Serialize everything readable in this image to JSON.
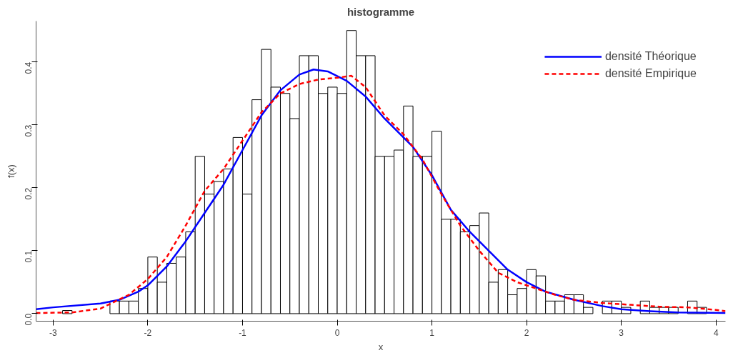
{
  "chart_data": {
    "type": "histogram",
    "title": "histogramme",
    "xlabel": "x",
    "ylabel": "f(x)",
    "bins": [
      -2.9,
      -2.8,
      -2.7,
      -2.6,
      -2.5,
      -2.4,
      -2.3,
      -2.2,
      -2.1,
      -2.0,
      -1.9,
      -1.8,
      -1.7,
      -1.6,
      -1.5,
      -1.4,
      -1.3,
      -1.2,
      -1.1,
      -1.0,
      -0.9,
      -0.8,
      -0.7,
      -0.6,
      -0.5,
      -0.4,
      -0.3,
      -0.2,
      -0.1,
      0.0,
      0.1,
      0.2,
      0.3,
      0.4,
      0.5,
      0.6,
      0.7,
      0.8,
      0.9,
      1.0,
      1.1,
      1.2,
      1.3,
      1.4,
      1.5,
      1.6,
      1.7,
      1.8,
      1.9,
      2.0,
      2.1,
      2.2,
      2.3,
      2.4,
      2.5,
      2.6,
      2.7,
      2.8,
      2.9,
      3.0,
      3.1,
      3.2,
      3.3,
      3.4,
      3.5,
      3.6,
      3.7,
      3.8,
      3.9
    ],
    "values": [
      0.005,
      0,
      0,
      0,
      0,
      0.02,
      0.02,
      0.02,
      0.04,
      0.09,
      0.05,
      0.08,
      0.09,
      0.13,
      0.25,
      0.19,
      0.21,
      0.23,
      0.28,
      0.19,
      0.34,
      0.42,
      0.36,
      0.35,
      0.31,
      0.41,
      0.41,
      0.35,
      0.36,
      0.35,
      0.45,
      0.41,
      0.41,
      0.25,
      0.25,
      0.26,
      0.33,
      0.25,
      0.25,
      0.29,
      0.15,
      0.15,
      0.13,
      0.14,
      0.16,
      0.05,
      0.07,
      0.03,
      0.04,
      0.07,
      0.06,
      0.02,
      0.02,
      0.03,
      0.03,
      0.01,
      0,
      0.02,
      0.02,
      0.01,
      0,
      0.02,
      0.01,
      0.01,
      0.01,
      0,
      0.02,
      0.01
    ],
    "color": "#ffffff",
    "series": [
      {
        "name": "densité Théorique",
        "type": "line",
        "color": "#0000ff",
        "line_style": "solid",
        "x": [
          -3.18,
          -3.0,
          -2.5,
          -2.3,
          -2.1,
          -2.0,
          -1.8,
          -1.6,
          -1.4,
          -1.2,
          -1.0,
          -0.8,
          -0.6,
          -0.4,
          -0.25,
          -0.1,
          0.1,
          0.3,
          0.5,
          0.7,
          0.8,
          1.0,
          1.2,
          1.4,
          1.6,
          1.8,
          2.0,
          2.2,
          2.5,
          2.8,
          3.0,
          3.3,
          3.6,
          4.1
        ],
        "values": [
          0.007,
          0.01,
          0.016,
          0.022,
          0.035,
          0.045,
          0.075,
          0.115,
          0.16,
          0.205,
          0.26,
          0.315,
          0.355,
          0.38,
          0.388,
          0.385,
          0.37,
          0.345,
          0.31,
          0.28,
          0.265,
          0.22,
          0.165,
          0.13,
          0.1,
          0.07,
          0.05,
          0.035,
          0.022,
          0.012,
          0.007,
          0.004,
          0.002,
          0.001
        ]
      },
      {
        "name": "densité Empirique",
        "type": "line",
        "color": "#ff0000",
        "line_style": "dashed",
        "x": [
          -3.18,
          -2.8,
          -2.5,
          -2.2,
          -2.0,
          -1.8,
          -1.6,
          -1.4,
          -1.2,
          -1.0,
          -0.8,
          -0.6,
          -0.4,
          -0.2,
          0.0,
          0.15,
          0.3,
          0.5,
          0.7,
          0.9,
          1.1,
          1.3,
          1.5,
          1.7,
          1.9,
          2.1,
          2.3,
          2.5,
          2.8,
          3.1,
          3.4,
          3.7,
          4.0,
          4.1
        ],
        "values": [
          0.001,
          0.002,
          0.008,
          0.03,
          0.055,
          0.09,
          0.14,
          0.195,
          0.23,
          0.275,
          0.32,
          0.35,
          0.365,
          0.372,
          0.375,
          0.378,
          0.36,
          0.315,
          0.285,
          0.245,
          0.19,
          0.14,
          0.1,
          0.065,
          0.05,
          0.04,
          0.03,
          0.022,
          0.017,
          0.014,
          0.011,
          0.01,
          0.006,
          0.004
        ]
      }
    ],
    "xlim": [
      -3.18,
      4.1
    ],
    "ylim": [
      -0.012,
      0.465
    ],
    "xticks": [
      -3,
      -2,
      -1,
      0,
      1,
      2,
      3,
      4
    ],
    "yticks": [
      {
        "value": 0,
        "label": "0.0"
      },
      0.1,
      0.2,
      0.3,
      0.4
    ],
    "grid": false,
    "legend": "top right",
    "marker": "none"
  }
}
